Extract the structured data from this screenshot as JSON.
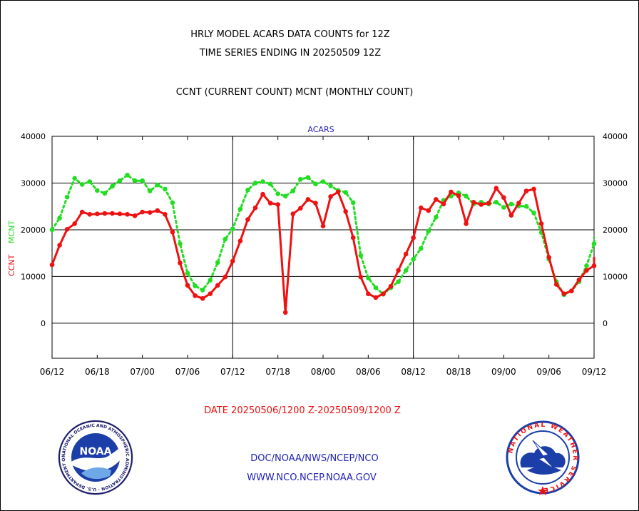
{
  "header": {
    "title_line1": "HRLY MODEL ACARS DATA COUNTS for 12Z",
    "title_line2": "TIME SERIES ENDING IN 20250509 12Z",
    "subtitle": "CCNT (CURRENT COUNT) MCNT (MONTHLY COUNT)"
  },
  "footer": {
    "date_range": "DATE 20250506/1200 Z-20250509/1200 Z",
    "org_line": "DOC/NOAA/NWS/NCEP/NCO",
    "url_line": "WWW.NCO.NCEP.NOAA.GOV"
  },
  "logos": {
    "noaa_text": "NOAA",
    "noaa_ring_text": "NATIONAL OCEANIC AND ATMOSPHERIC ADMINISTRATION · U.S. DEPARTMENT OF COMMERCE",
    "nws_ring_text": "NATIONAL WEATHER SERVICE"
  },
  "colors": {
    "ccnt": "#ee1111",
    "mcnt": "#22dd22",
    "title": "#000000",
    "panel_label": "#2222bb",
    "date_text": "#ee1111",
    "footer_text": "#2222bb"
  },
  "chart_data": {
    "type": "line",
    "panel_label": "ACARS",
    "ylabel_ccnt": "CCNT",
    "ylabel_mcnt": "MCNT",
    "ylim": [
      -7500,
      40000
    ],
    "y_ticks": [
      0,
      10000,
      20000,
      30000,
      40000
    ],
    "y_tick_labels": [
      "0",
      "10000",
      "20000",
      "30000",
      "40000"
    ],
    "x_tick_labels": [
      "06/12",
      "06/18",
      "07/00",
      "07/06",
      "07/12",
      "07/18",
      "08/00",
      "08/06",
      "08/12",
      "08/18",
      "09/00",
      "09/06",
      "09/12"
    ],
    "grid": true,
    "day_separators_at_hours": [
      24,
      48
    ],
    "x_hours_start": 0,
    "x_hours_end": 72,
    "series": [
      {
        "name": "CCNT",
        "style": "solid",
        "x": [
          0,
          1,
          2,
          3,
          4,
          5,
          6,
          7,
          8,
          9,
          10,
          11,
          12,
          13,
          14,
          15,
          16,
          17,
          18,
          19,
          20,
          21,
          22,
          23,
          24,
          25,
          26,
          27,
          28,
          29,
          30,
          31,
          32,
          33,
          34,
          35,
          36,
          37,
          38,
          39,
          40,
          41,
          42,
          43,
          44,
          45,
          46,
          47,
          48,
          49,
          50,
          51,
          52,
          53,
          54,
          55,
          56,
          57,
          58,
          59,
          60,
          61,
          62,
          63,
          64,
          65,
          66,
          67,
          68,
          69,
          70,
          71,
          72
        ],
        "values": [
          12500,
          16700,
          20100,
          21300,
          23800,
          23300,
          23400,
          23500,
          23500,
          23400,
          23300,
          23000,
          23800,
          23700,
          24100,
          23300,
          19500,
          12900,
          8100,
          5900,
          5300,
          6300,
          8100,
          9900,
          13300,
          17600,
          22200,
          24700,
          27600,
          25700,
          25400,
          2300,
          23400,
          24600,
          26500,
          25700,
          20800,
          27100,
          28100,
          23900,
          18300,
          9900,
          6300,
          5500,
          6300,
          7900,
          11300,
          14800,
          18300,
          24700,
          24100,
          26500,
          25500,
          28100,
          27300,
          21300,
          25900,
          25400,
          25700,
          28900,
          26900,
          23100,
          25700,
          28300,
          28700,
          21300,
          14100,
          8300,
          6300,
          6900,
          9300,
          11300,
          12300
        ],
        "values_tail": [
          14200
        ]
      },
      {
        "name": "MCNT",
        "style": "dotted",
        "x": [
          0,
          1,
          2,
          3,
          4,
          5,
          6,
          7,
          8,
          9,
          10,
          11,
          12,
          13,
          14,
          15,
          16,
          17,
          18,
          19,
          20,
          21,
          22,
          23,
          24,
          25,
          26,
          27,
          28,
          29,
          30,
          31,
          32,
          33,
          34,
          35,
          36,
          37,
          38,
          39,
          40,
          41,
          42,
          43,
          44,
          45,
          46,
          47,
          48,
          49,
          50,
          51,
          52,
          53,
          54,
          55,
          56,
          57,
          58,
          59,
          60,
          61,
          62,
          63,
          64,
          65,
          66,
          67,
          68,
          69,
          70,
          71,
          72
        ],
        "values": [
          20000,
          22500,
          27000,
          31000,
          29700,
          30300,
          28400,
          27800,
          29300,
          30500,
          31700,
          30500,
          30500,
          28300,
          29600,
          28700,
          25800,
          17000,
          10700,
          8000,
          7100,
          9200,
          13000,
          18000,
          20200,
          24400,
          28500,
          30000,
          30300,
          29800,
          27700,
          27200,
          28300,
          30800,
          31200,
          29800,
          30300,
          29400,
          28400,
          28000,
          25800,
          14500,
          9700,
          7600,
          6200,
          7600,
          8900,
          11300,
          13700,
          16000,
          19700,
          22700,
          26300,
          27200,
          27900,
          27200,
          25500,
          25900,
          25500,
          25900,
          24800,
          25500,
          25100,
          25000,
          23600,
          19400,
          13700,
          8900,
          6100,
          6900,
          8900,
          12300,
          17000
        ],
        "values_tail": [
          18300
        ]
      }
    ]
  }
}
